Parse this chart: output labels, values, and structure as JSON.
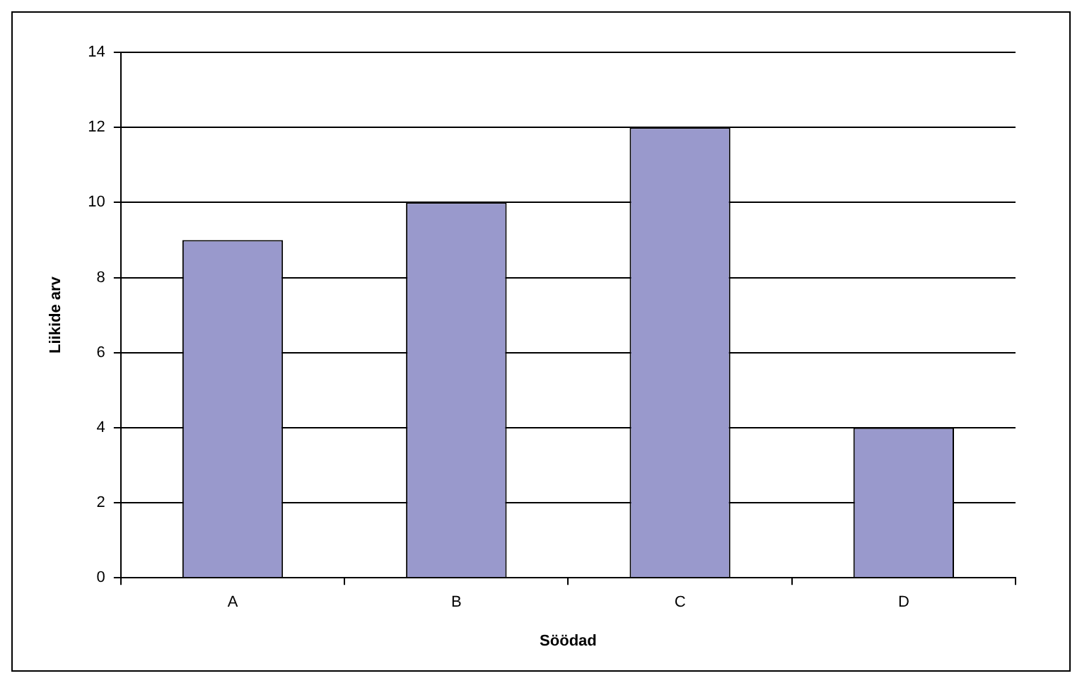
{
  "chart_data": {
    "type": "bar",
    "xlabel": "Söödad",
    "ylabel": "Liikide arv",
    "categories": [
      "A",
      "B",
      "C",
      "D"
    ],
    "series": [
      {
        "color": "#9999cc",
        "values": [
          9,
          10,
          12,
          4
        ]
      }
    ],
    "ylim": [
      0,
      14
    ],
    "yticks": [
      0,
      2,
      4,
      6,
      8,
      10,
      12,
      14
    ],
    "grid": "y",
    "legend": false
  }
}
